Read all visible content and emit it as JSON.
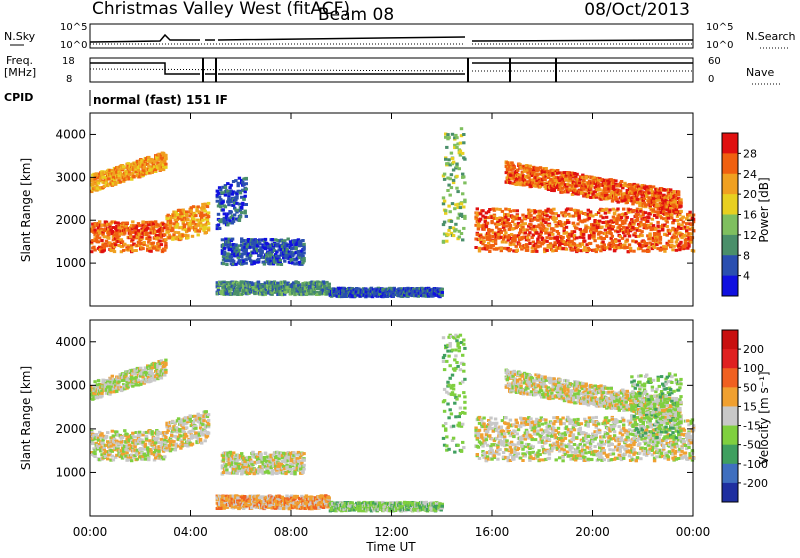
{
  "header": {
    "station": "Christmas Valley West (fitACF)",
    "beam": "Beam 08",
    "date": "08/Oct/2013"
  },
  "aux_panels": {
    "nsky": {
      "label": "N.Sky",
      "ticks": [
        "10^5",
        "10^0"
      ]
    },
    "nsearch": {
      "label": "N.Search",
      "ticks": [
        "10^5",
        "10^0"
      ]
    },
    "freq": {
      "label_line1": "Freq.",
      "label_line2": "[MHz]",
      "ticks": [
        "18",
        "8"
      ]
    },
    "nave": {
      "label": "Nave",
      "ticks": [
        "60",
        "0"
      ]
    },
    "cpid": {
      "label": "CPID",
      "text": "normal (fast) 151 IF"
    }
  },
  "chart_data": [
    {
      "type": "heatmap",
      "name": "power",
      "ylabel": "Slant Range [km]",
      "xlabel": "Time UT",
      "xlim_hours": [
        0,
        24
      ],
      "ylim_km": [
        0,
        4500
      ],
      "x_ticks": [
        "00:00",
        "04:00",
        "08:00",
        "12:00",
        "16:00",
        "20:00",
        "00:00"
      ],
      "y_ticks": [
        "1000",
        "2000",
        "3000",
        "4000"
      ],
      "y_tick_values": [
        1000,
        2000,
        3000,
        4000
      ],
      "colorbar": {
        "label": "Power [dB]",
        "tick_labels": [
          "4",
          "8",
          "12",
          "16",
          "20",
          "24",
          "28"
        ],
        "colors": [
          "#1010e0",
          "#2a4fb0",
          "#4a8f6a",
          "#7fbf5f",
          "#e8d020",
          "#f0a020",
          "#f06010",
          "#e01010"
        ]
      },
      "bands": [
        {
          "t0": 0.0,
          "t1": 3.0,
          "r0": 1300,
          "r1": 2000,
          "level": 6,
          "slope": 0
        },
        {
          "t0": 0.0,
          "t1": 3.0,
          "r0": 2700,
          "r1": 3100,
          "level": 5,
          "slope": 180
        },
        {
          "t0": 3.0,
          "t1": 4.7,
          "r0": 1500,
          "r1": 2200,
          "level": 5,
          "slope": 150
        },
        {
          "t0": 5.0,
          "t1": 6.2,
          "r0": 1800,
          "r1": 2800,
          "level": 1,
          "slope": 250
        },
        {
          "t0": 5.2,
          "t1": 8.5,
          "r0": 1000,
          "r1": 1600,
          "level": 1,
          "slope": 0
        },
        {
          "t0": 5.0,
          "t1": 9.5,
          "r0": 300,
          "r1": 600,
          "level": 2,
          "slope": 0
        },
        {
          "t0": 9.5,
          "t1": 14.0,
          "r0": 250,
          "r1": 450,
          "level": 1,
          "slope": 0
        },
        {
          "t0": 14.0,
          "t1": 14.9,
          "r0": 1500,
          "r1": 4200,
          "level": 3,
          "slope": 0
        },
        {
          "t0": 15.3,
          "t1": 24.0,
          "r0": 1300,
          "r1": 2300,
          "level": 6,
          "slope": 0
        },
        {
          "t0": 16.5,
          "t1": 23.5,
          "r0": 2900,
          "r1": 3400,
          "level": 6,
          "slope": -100
        }
      ]
    },
    {
      "type": "heatmap",
      "name": "velocity",
      "ylabel": "Slant Range [km]",
      "xlabel": "Time UT",
      "xlim_hours": [
        0,
        24
      ],
      "ylim_km": [
        0,
        4500
      ],
      "x_ticks": [
        "00:00",
        "04:00",
        "08:00",
        "12:00",
        "16:00",
        "20:00",
        "00:00"
      ],
      "y_ticks": [
        "1000",
        "2000",
        "3000",
        "4000"
      ],
      "y_tick_values": [
        1000,
        2000,
        3000,
        4000
      ],
      "colorbar": {
        "label": "Velocity [m s⁻¹]",
        "tick_labels": [
          "200",
          "100",
          "50",
          "15",
          "-15",
          "-50",
          "-100",
          "-200"
        ],
        "colors": [
          "#1f2fa0",
          "#3f6fbf",
          "#3f9f5f",
          "#7fcf3f",
          "#c8c8c8",
          "#f0a030",
          "#f06020",
          "#e02020",
          "#c81010"
        ]
      },
      "bands": [
        {
          "t0": 0.0,
          "t1": 3.0,
          "r0": 1300,
          "r1": 2000,
          "level": 4,
          "slope": 0
        },
        {
          "t0": 0.0,
          "t1": 3.0,
          "r0": 2700,
          "r1": 3100,
          "level": 4,
          "slope": 180
        },
        {
          "t0": 3.0,
          "t1": 4.7,
          "r0": 1500,
          "r1": 2200,
          "level": 4,
          "slope": 150
        },
        {
          "t0": 5.2,
          "t1": 8.5,
          "r0": 1000,
          "r1": 1500,
          "level": 4,
          "slope": 0
        },
        {
          "t0": 5.0,
          "t1": 9.5,
          "r0": 200,
          "r1": 500,
          "level": 5,
          "slope": 0
        },
        {
          "t0": 9.5,
          "t1": 14.0,
          "r0": 150,
          "r1": 350,
          "level": 3,
          "slope": 0
        },
        {
          "t0": 14.0,
          "t1": 14.9,
          "r0": 1500,
          "r1": 4200,
          "level": 3,
          "slope": 0
        },
        {
          "t0": 15.3,
          "t1": 24.0,
          "r0": 1300,
          "r1": 2300,
          "level": 4,
          "slope": 0
        },
        {
          "t0": 16.5,
          "t1": 23.5,
          "r0": 2900,
          "r1": 3400,
          "level": 4,
          "slope": -100
        },
        {
          "t0": 21.5,
          "t1": 23.5,
          "r0": 1800,
          "r1": 3300,
          "level": 3,
          "slope": 0
        }
      ]
    }
  ]
}
